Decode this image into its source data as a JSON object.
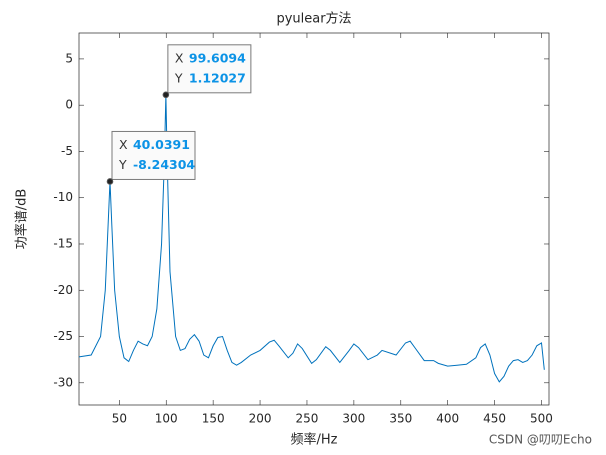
{
  "chart_data": {
    "type": "line",
    "title": "pyulear方法",
    "xlabel": "频率/Hz",
    "ylabel": "功率谱/dB",
    "x": [
      7,
      20,
      30,
      35,
      38,
      40.0391,
      42,
      45,
      50,
      55,
      60,
      65,
      70,
      75,
      80,
      85,
      90,
      95,
      98,
      99.6094,
      101,
      104,
      110,
      115,
      120,
      125,
      130,
      135,
      140,
      145,
      150,
      155,
      160,
      165,
      170,
      175,
      180,
      190,
      200,
      210,
      215,
      220,
      230,
      235,
      240,
      245,
      255,
      260,
      270,
      275,
      285,
      295,
      300,
      305,
      315,
      325,
      330,
      345,
      355,
      360,
      365,
      375,
      385,
      390,
      400,
      410,
      420,
      430,
      435,
      440,
      445,
      450,
      455,
      460,
      465,
      470,
      475,
      480,
      485,
      490,
      495,
      500,
      503
    ],
    "series": [
      {
        "color": "#0072bd",
        "values": [
          -27.2,
          -27,
          -25,
          -20,
          -13,
          -8.24304,
          -13,
          -20,
          -25,
          -27.3,
          -27.7,
          -26.5,
          -25.5,
          -25.8,
          -26,
          -25,
          -22,
          -15,
          -6,
          1.12027,
          -6,
          -18,
          -25,
          -26.5,
          -26.3,
          -25.3,
          -24.8,
          -25.5,
          -27,
          -27.3,
          -26,
          -25.1,
          -25,
          -26.5,
          -27.8,
          -28.1,
          -27.8,
          -27,
          -26.5,
          -25.6,
          -25.4,
          -26,
          -27.3,
          -26.8,
          -25.8,
          -26.3,
          -27.9,
          -27.5,
          -26.1,
          -26.5,
          -27.8,
          -26.5,
          -25.8,
          -26.2,
          -27.5,
          -27,
          -26.5,
          -27,
          -25.7,
          -25.5,
          -26.2,
          -27.6,
          -27.6,
          -27.9,
          -28.2,
          -28.1,
          -28,
          -27.3,
          -26.2,
          -25.8,
          -27,
          -29,
          -29.9,
          -29.3,
          -28.2,
          -27.6,
          -27.5,
          -27.8,
          -27.6,
          -27,
          -26,
          -25.7,
          -28.6
        ]
      }
    ],
    "xlim": [
      7,
      508
    ],
    "ylim": [
      -32.4,
      7.8
    ],
    "xticks": [
      50,
      100,
      150,
      200,
      250,
      300,
      350,
      400,
      450,
      500
    ],
    "yticks": [
      -30,
      -25,
      -20,
      -15,
      -10,
      -5,
      0,
      5
    ],
    "datatip_labels": [
      "X",
      "Y"
    ],
    "datatips": [
      {
        "x": 40.0391,
        "y": -8.24304
      },
      {
        "x": 99.6094,
        "y": 1.12027
      }
    ]
  },
  "watermark": "CSDN @叨叨Echo"
}
